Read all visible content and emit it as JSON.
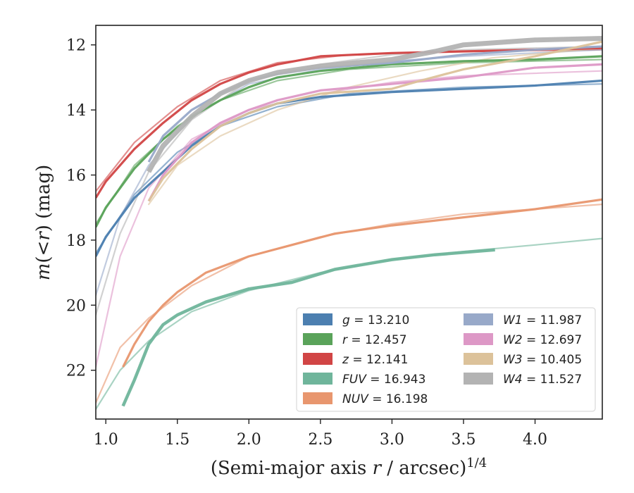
{
  "chart_data": {
    "type": "line",
    "title": "",
    "xlabel_main": "(Semi-major axis ",
    "xlabel_r": "r",
    "xlabel_unit": " / arcsec)",
    "xlabel_exp": "1/4",
    "ylabel_m": "m",
    "ylabel_mid": "(<",
    "ylabel_r": "r",
    "ylabel_tail": ") (mag)",
    "xlim": [
      0.93,
      4.47
    ],
    "ylim": [
      23.5,
      11.4
    ],
    "y_inverted": true,
    "xticks": [
      1.0,
      1.5,
      2.0,
      2.5,
      3.0,
      3.5,
      4.0
    ],
    "xtick_labels": [
      "1.0",
      "1.5",
      "2.0",
      "2.5",
      "3.0",
      "3.5",
      "4.0"
    ],
    "yticks": [
      12,
      14,
      16,
      18,
      20,
      22
    ],
    "ytick_labels": [
      "12",
      "14",
      "16",
      "18",
      "20",
      "22"
    ],
    "grid": false,
    "legend_position": "lower-right",
    "series": [
      {
        "band": "g",
        "value": "13.210",
        "color": "#4c7fb0",
        "data": [
          [
            0.93,
            18.5
          ],
          [
            1.0,
            17.9
          ],
          [
            1.2,
            16.7
          ],
          [
            1.4,
            15.9
          ],
          [
            1.6,
            15.1
          ],
          [
            1.8,
            14.5
          ],
          [
            2.0,
            14.1
          ],
          [
            2.2,
            13.8
          ],
          [
            2.5,
            13.6
          ],
          [
            3.0,
            13.45
          ],
          [
            3.5,
            13.35
          ],
          [
            4.0,
            13.25
          ],
          [
            4.47,
            13.1
          ]
        ],
        "model": [
          [
            0.93,
            18.4
          ],
          [
            1.2,
            16.6
          ],
          [
            1.5,
            15.3
          ],
          [
            1.8,
            14.5
          ],
          [
            2.2,
            13.9
          ],
          [
            2.7,
            13.5
          ],
          [
            3.5,
            13.3
          ],
          [
            4.47,
            13.2
          ]
        ]
      },
      {
        "band": "r",
        "value": "12.457",
        "color": "#5aa35a",
        "data": [
          [
            0.93,
            17.6
          ],
          [
            1.0,
            17.0
          ],
          [
            1.2,
            15.8
          ],
          [
            1.4,
            14.9
          ],
          [
            1.6,
            14.2
          ],
          [
            1.8,
            13.7
          ],
          [
            2.0,
            13.3
          ],
          [
            2.2,
            13.0
          ],
          [
            2.5,
            12.8
          ],
          [
            3.0,
            12.6
          ],
          [
            3.5,
            12.5
          ],
          [
            4.0,
            12.45
          ],
          [
            4.47,
            12.35
          ]
        ],
        "model": [
          [
            0.93,
            17.5
          ],
          [
            1.2,
            15.7
          ],
          [
            1.5,
            14.5
          ],
          [
            1.8,
            13.7
          ],
          [
            2.2,
            13.1
          ],
          [
            2.7,
            12.75
          ],
          [
            3.5,
            12.55
          ],
          [
            4.47,
            12.45
          ]
        ]
      },
      {
        "band": "z",
        "value": "12.141",
        "color": "#d14545",
        "data": [
          [
            0.93,
            16.7
          ],
          [
            1.0,
            16.2
          ],
          [
            1.2,
            15.2
          ],
          [
            1.4,
            14.4
          ],
          [
            1.6,
            13.7
          ],
          [
            1.8,
            13.2
          ],
          [
            2.0,
            12.85
          ],
          [
            2.2,
            12.6
          ],
          [
            2.5,
            12.35
          ],
          [
            3.0,
            12.25
          ],
          [
            3.5,
            12.2
          ],
          [
            4.0,
            12.15
          ],
          [
            4.47,
            12.1
          ]
        ],
        "model": [
          [
            0.93,
            16.5
          ],
          [
            1.2,
            15.0
          ],
          [
            1.5,
            13.9
          ],
          [
            1.8,
            13.1
          ],
          [
            2.2,
            12.55
          ],
          [
            2.7,
            12.3
          ],
          [
            3.5,
            12.2
          ],
          [
            4.47,
            12.15
          ]
        ]
      },
      {
        "band": "FUV",
        "value": "16.943",
        "color": "#6fb59b",
        "data": [
          [
            1.12,
            23.1
          ],
          [
            1.2,
            22.3
          ],
          [
            1.3,
            21.2
          ],
          [
            1.4,
            20.6
          ],
          [
            1.5,
            20.3
          ],
          [
            1.7,
            19.9
          ],
          [
            2.0,
            19.5
          ],
          [
            2.3,
            19.3
          ],
          [
            2.6,
            18.9
          ],
          [
            3.0,
            18.6
          ],
          [
            3.3,
            18.45
          ],
          [
            3.72,
            18.3
          ]
        ],
        "model": [
          [
            0.93,
            23.2
          ],
          [
            1.1,
            22.0
          ],
          [
            1.3,
            21.1
          ],
          [
            1.6,
            20.2
          ],
          [
            2.0,
            19.55
          ],
          [
            2.5,
            19.0
          ],
          [
            3.0,
            18.6
          ],
          [
            3.5,
            18.35
          ],
          [
            4.0,
            18.15
          ],
          [
            4.47,
            17.95
          ]
        ]
      },
      {
        "band": "NUV",
        "value": "16.198",
        "color": "#e8966e",
        "data": [
          [
            1.12,
            21.9
          ],
          [
            1.2,
            21.2
          ],
          [
            1.3,
            20.5
          ],
          [
            1.4,
            20.0
          ],
          [
            1.5,
            19.6
          ],
          [
            1.7,
            19.0
          ],
          [
            2.0,
            18.5
          ],
          [
            2.3,
            18.15
          ],
          [
            2.6,
            17.8
          ],
          [
            3.0,
            17.55
          ],
          [
            3.5,
            17.3
          ],
          [
            4.0,
            17.05
          ],
          [
            4.47,
            16.75
          ]
        ],
        "model": [
          [
            0.93,
            23.0
          ],
          [
            1.1,
            21.3
          ],
          [
            1.3,
            20.4
          ],
          [
            1.6,
            19.4
          ],
          [
            2.0,
            18.5
          ],
          [
            2.5,
            17.9
          ],
          [
            3.0,
            17.5
          ],
          [
            3.5,
            17.2
          ],
          [
            4.0,
            17.05
          ],
          [
            4.47,
            16.9
          ]
        ]
      },
      {
        "band": "W1",
        "value": "11.987",
        "color": "#98a9c9",
        "data": [
          [
            1.3,
            15.6
          ],
          [
            1.4,
            14.8
          ],
          [
            1.6,
            14.0
          ],
          [
            1.8,
            13.5
          ],
          [
            2.0,
            13.1
          ],
          [
            2.2,
            12.9
          ],
          [
            2.5,
            12.7
          ],
          [
            3.0,
            12.55
          ],
          [
            3.5,
            12.3
          ],
          [
            4.0,
            12.15
          ],
          [
            4.47,
            12.05
          ]
        ],
        "model": [
          [
            0.93,
            19.7
          ],
          [
            1.1,
            17.3
          ],
          [
            1.3,
            15.7
          ],
          [
            1.6,
            14.2
          ],
          [
            2.0,
            13.2
          ],
          [
            2.5,
            12.75
          ],
          [
            3.0,
            12.5
          ],
          [
            3.5,
            12.35
          ],
          [
            4.47,
            12.15
          ]
        ]
      },
      {
        "band": "W2",
        "value": "12.697",
        "color": "#dd98c6",
        "data": [
          [
            1.3,
            16.8
          ],
          [
            1.4,
            16.0
          ],
          [
            1.6,
            15.0
          ],
          [
            1.8,
            14.4
          ],
          [
            2.0,
            14.0
          ],
          [
            2.2,
            13.7
          ],
          [
            2.5,
            13.4
          ],
          [
            3.0,
            13.2
          ],
          [
            3.5,
            13.0
          ],
          [
            4.0,
            12.7
          ],
          [
            4.47,
            12.6
          ]
        ],
        "model": [
          [
            0.93,
            21.9
          ],
          [
            1.1,
            18.5
          ],
          [
            1.3,
            16.4
          ],
          [
            1.6,
            14.9
          ],
          [
            2.0,
            14.0
          ],
          [
            2.5,
            13.5
          ],
          [
            3.0,
            13.15
          ],
          [
            3.5,
            12.95
          ],
          [
            4.47,
            12.8
          ]
        ]
      },
      {
        "band": "W3",
        "value": "10.405",
        "color": "#dcc29a",
        "data": [
          [
            1.3,
            16.8
          ],
          [
            1.4,
            16.1
          ],
          [
            1.6,
            15.2
          ],
          [
            1.8,
            14.5
          ],
          [
            2.0,
            14.1
          ],
          [
            2.2,
            13.8
          ],
          [
            2.5,
            13.5
          ],
          [
            3.0,
            13.35
          ],
          [
            3.2,
            13.1
          ],
          [
            3.5,
            12.75
          ],
          [
            4.0,
            12.35
          ],
          [
            4.47,
            11.9
          ]
        ],
        "model": [
          [
            1.3,
            16.9
          ],
          [
            1.5,
            15.7
          ],
          [
            1.8,
            14.8
          ],
          [
            2.2,
            14.0
          ],
          [
            2.7,
            13.3
          ],
          [
            3.2,
            12.8
          ],
          [
            3.7,
            12.4
          ],
          [
            4.47,
            12.1
          ]
        ]
      },
      {
        "band": "W4",
        "value": "11.527",
        "color": "#b3b3b3",
        "data": [
          [
            1.3,
            15.9
          ],
          [
            1.4,
            15.1
          ],
          [
            1.6,
            14.2
          ],
          [
            1.8,
            13.5
          ],
          [
            2.0,
            13.1
          ],
          [
            2.2,
            12.85
          ],
          [
            2.5,
            12.65
          ],
          [
            3.0,
            12.45
          ],
          [
            3.3,
            12.2
          ],
          [
            3.5,
            12.0
          ],
          [
            4.0,
            11.85
          ],
          [
            4.47,
            11.8
          ]
        ],
        "model": [
          [
            0.93,
            20.3
          ],
          [
            1.1,
            17.8
          ],
          [
            1.3,
            15.9
          ],
          [
            1.6,
            14.3
          ],
          [
            2.0,
            13.1
          ],
          [
            2.5,
            12.6
          ],
          [
            3.0,
            12.3
          ],
          [
            3.5,
            12.15
          ],
          [
            4.47,
            12.05
          ]
        ]
      }
    ],
    "legend_columns": [
      [
        "g",
        "r",
        "z",
        "FUV",
        "NUV"
      ],
      [
        "W1",
        "W2",
        "W3",
        "W4"
      ]
    ]
  }
}
